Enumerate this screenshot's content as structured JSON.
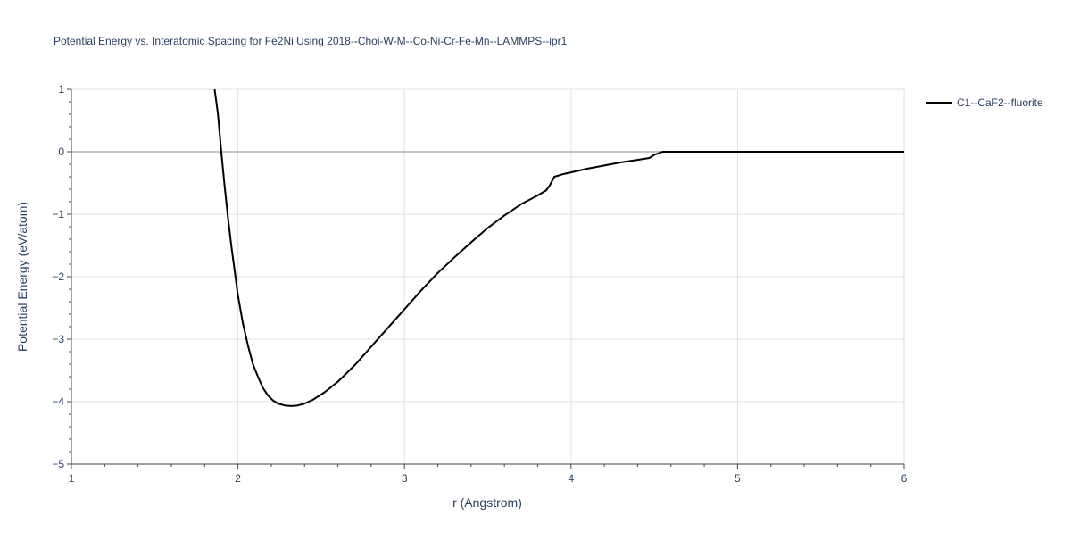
{
  "chart_data": {
    "type": "line",
    "title": "Potential Energy vs. Interatomic Spacing for Fe2Ni Using 2018--Choi-W-M--Co-Ni-Cr-Fe-Mn--LAMMPS--ipr1",
    "xlabel": "r (Angstrom)",
    "ylabel": "Potential Energy (eV/atom)",
    "xlim": [
      1,
      6
    ],
    "ylim": [
      -5,
      1
    ],
    "xticks": [
      1,
      2,
      3,
      4,
      5,
      6
    ],
    "xtick_labels": [
      "1",
      "2",
      "3",
      "4",
      "5",
      "6"
    ],
    "yticks": [
      1,
      0,
      -1,
      -2,
      -3,
      -4,
      -5
    ],
    "ytick_labels": [
      "1",
      "0",
      "−1",
      "−2",
      "−3",
      "−4",
      "−5"
    ],
    "grid": true,
    "legend_position": "top-right outside",
    "series": [
      {
        "name": "C1--CaF2--fluorite",
        "color": "#000000",
        "x": [
          1.86,
          1.88,
          1.9,
          1.92,
          1.94,
          1.96,
          1.98,
          2.0,
          2.03,
          2.06,
          2.09,
          2.12,
          2.15,
          2.18,
          2.21,
          2.24,
          2.28,
          2.32,
          2.36,
          2.4,
          2.45,
          2.52,
          2.6,
          2.7,
          2.8,
          2.9,
          3.0,
          3.1,
          3.2,
          3.3,
          3.4,
          3.5,
          3.6,
          3.7,
          3.8,
          3.85,
          3.87,
          3.9,
          3.95,
          4.0,
          4.1,
          4.2,
          4.3,
          4.4,
          4.47,
          4.5,
          4.55,
          5.0,
          5.5,
          6.0
        ],
        "y": [
          1.0,
          0.6,
          0.0,
          -0.55,
          -1.05,
          -1.5,
          -1.9,
          -2.3,
          -2.75,
          -3.1,
          -3.4,
          -3.6,
          -3.78,
          -3.9,
          -3.98,
          -4.03,
          -4.06,
          -4.07,
          -4.06,
          -4.03,
          -3.97,
          -3.85,
          -3.68,
          -3.42,
          -3.12,
          -2.82,
          -2.52,
          -2.22,
          -1.94,
          -1.69,
          -1.45,
          -1.22,
          -1.02,
          -0.84,
          -0.7,
          -0.62,
          -0.55,
          -0.4,
          -0.36,
          -0.33,
          -0.27,
          -0.22,
          -0.17,
          -0.13,
          -0.1,
          -0.05,
          0.0,
          0.0,
          0.0,
          0.0
        ]
      }
    ]
  }
}
